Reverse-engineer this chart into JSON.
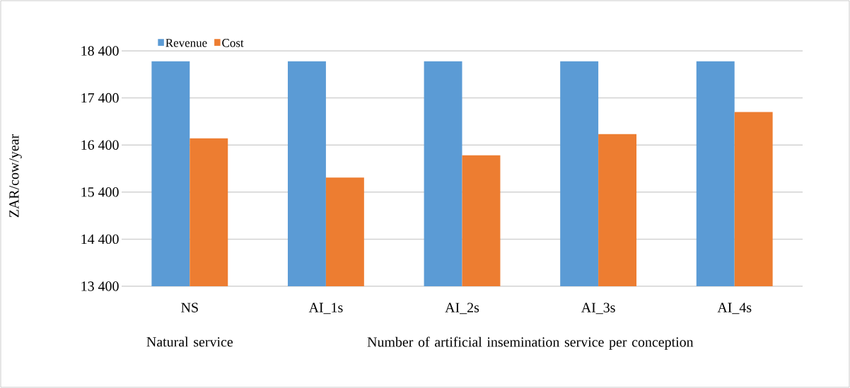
{
  "chart_data": {
    "type": "bar",
    "ylabel": "ZAR/cow/year",
    "categories": [
      "NS",
      "AI_1s",
      "AI_2s",
      "AI_3s",
      "AI_4s"
    ],
    "series": [
      {
        "name": "Revenue",
        "color": "#5b9bd5",
        "values": [
          18180,
          18180,
          18180,
          18180,
          18180
        ]
      },
      {
        "name": "Cost",
        "color": "#ed7d31",
        "values": [
          16540,
          15710,
          16180,
          16630,
          17100
        ]
      }
    ],
    "ylim": [
      13400,
      18400
    ],
    "yticks": [
      {
        "value": 13400,
        "label": "13 400"
      },
      {
        "value": 14400,
        "label": "14 400"
      },
      {
        "value": 15400,
        "label": "15 400"
      },
      {
        "value": 16400,
        "label": "16 400"
      },
      {
        "value": 17400,
        "label": "17 400"
      },
      {
        "value": 18400,
        "label": "18 400"
      }
    ],
    "grid": "y",
    "legend": "top left",
    "annotations": [
      "Natural service",
      "Number of  artificial insemination  service per conception"
    ]
  }
}
